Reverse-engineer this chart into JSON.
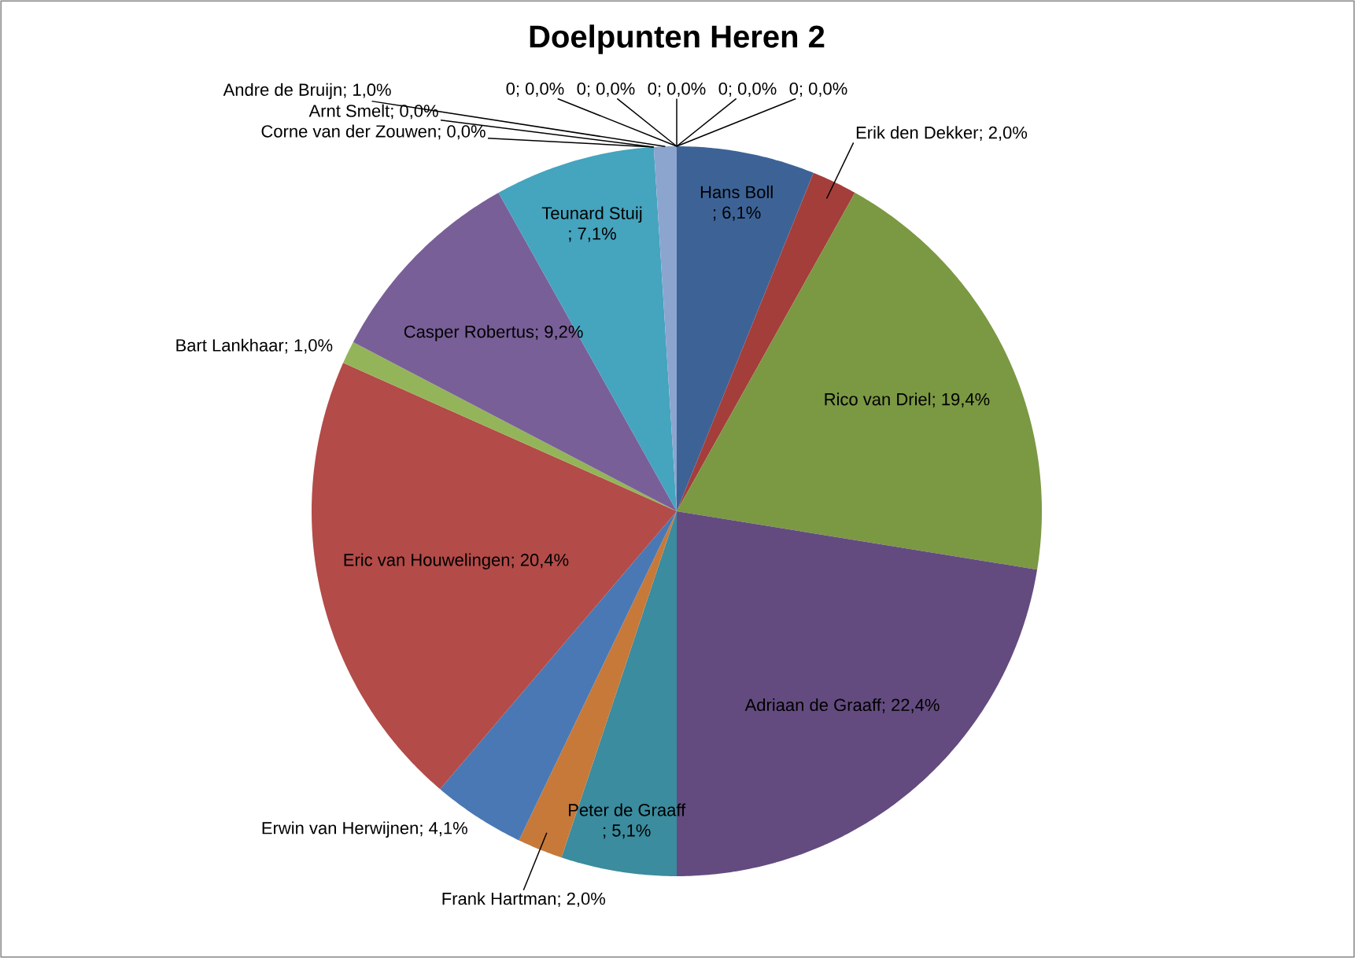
{
  "chart_data": {
    "type": "pie",
    "title": "Doelpunten Heren 2",
    "categories": [
      "Hans Boll",
      "Erik den Dekker",
      "Rico van Driel",
      "Adriaan de Graaff",
      "Peter de Graaff",
      "Frank Hartman",
      "Erwin van Herwijnen",
      "Eric van Houwelingen",
      "Bart Lankhaar",
      "Casper Robertus",
      "Teunard Stuij",
      "Corne van der Zouwen",
      "Arnt Smelt",
      "Andre de Bruijn",
      "0",
      "0",
      "0",
      "0",
      "0"
    ],
    "values": [
      6.1,
      2.0,
      19.4,
      22.4,
      5.1,
      2.0,
      4.1,
      20.4,
      1.0,
      9.2,
      7.1,
      0.0,
      0.0,
      1.0,
      0.0,
      0.0,
      0.0,
      0.0,
      0.0
    ],
    "value_labels": [
      "; 6,1%",
      "; 2,0%",
      "; 19,4%",
      "; 22,4%",
      "; 5,1%",
      "; 2,0%",
      "; 4,1%",
      "; 20,4%",
      "; 1,0%",
      "; 9,2%",
      "; 7,1%",
      "; 0,0%",
      "; 0,0%",
      "; 1,0%",
      "; 0,0%",
      "; 0,0%",
      "; 0,0%",
      "; 0,0%",
      "; 0,0%"
    ],
    "colors": [
      "#3d6396",
      "#a33e3b",
      "#7b9843",
      "#634b7f",
      "#3a8c9e",
      "#c7793a",
      "#4a78b4",
      "#b34b48",
      "#94b45a",
      "#795f98",
      "#45a4be",
      "#f59d56",
      "#a9b9da",
      "#8ca5cf",
      "#d99694",
      "#c3d69b",
      "#b3a2c7",
      "#93cddd",
      "#fac090"
    ]
  }
}
